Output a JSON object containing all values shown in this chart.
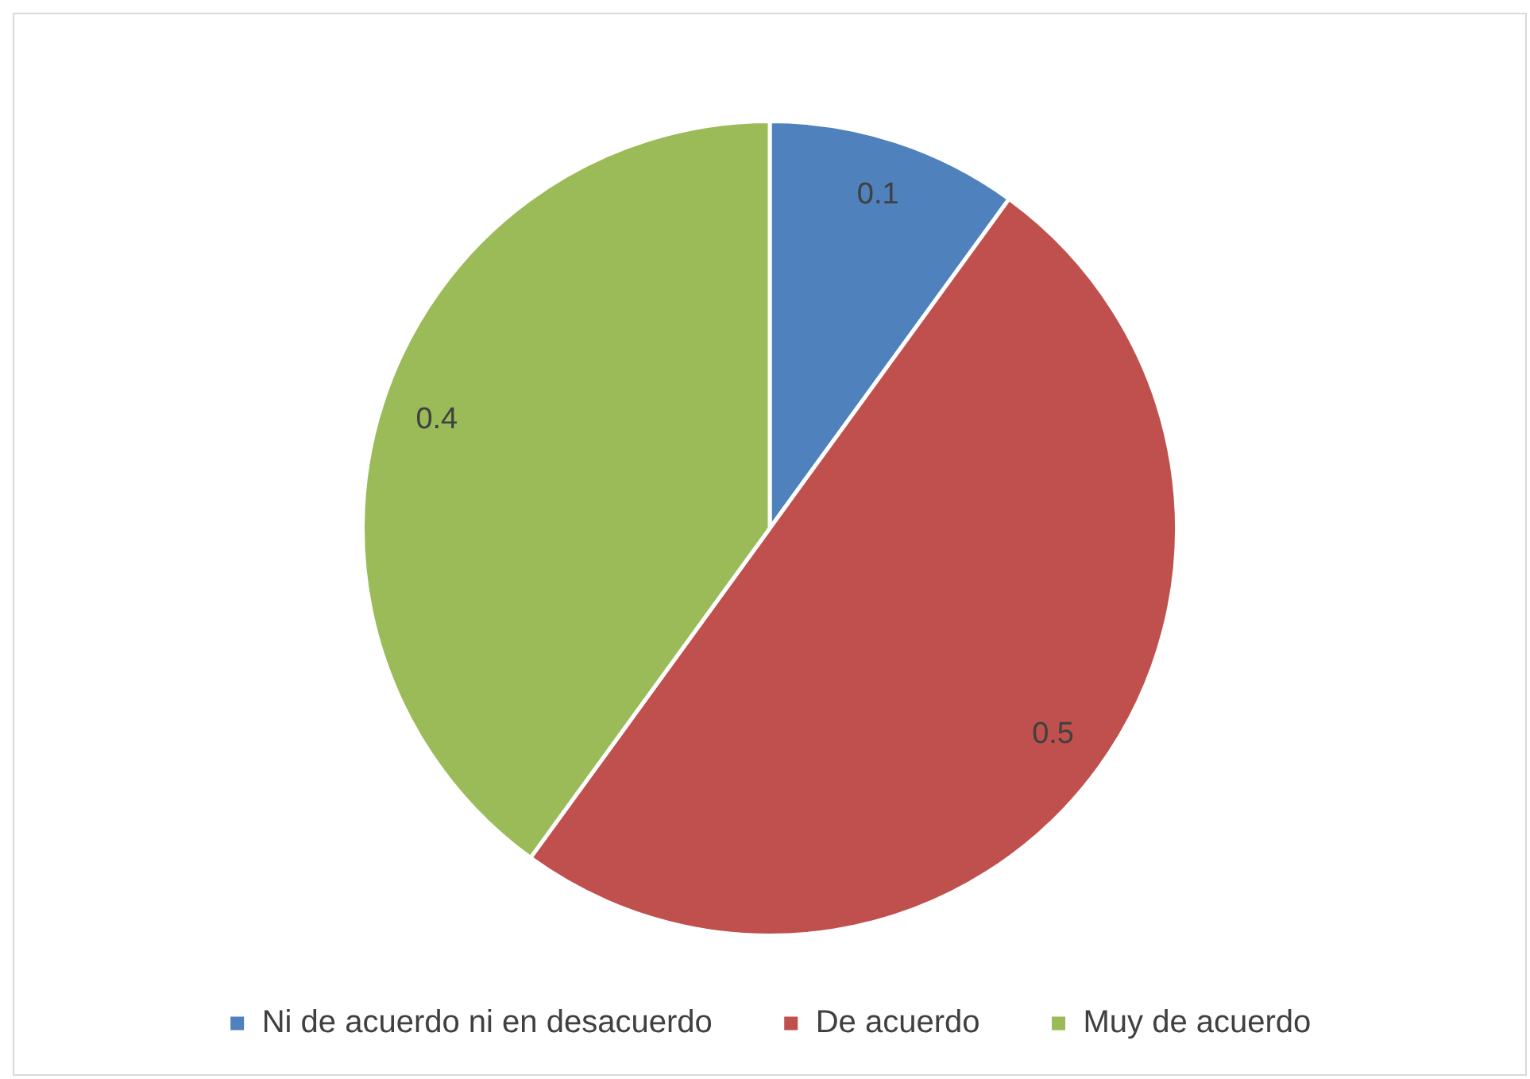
{
  "chart_data": {
    "type": "pie",
    "categories": [
      "Ni de acuerdo ni en desacuerdo",
      "De acuerdo",
      "Muy de acuerdo"
    ],
    "values": [
      0.1,
      0.5,
      0.4
    ],
    "colors": [
      "#4f81bd",
      "#c0504d",
      "#9bbb59"
    ],
    "data_labels": true,
    "legend": "bottom"
  }
}
